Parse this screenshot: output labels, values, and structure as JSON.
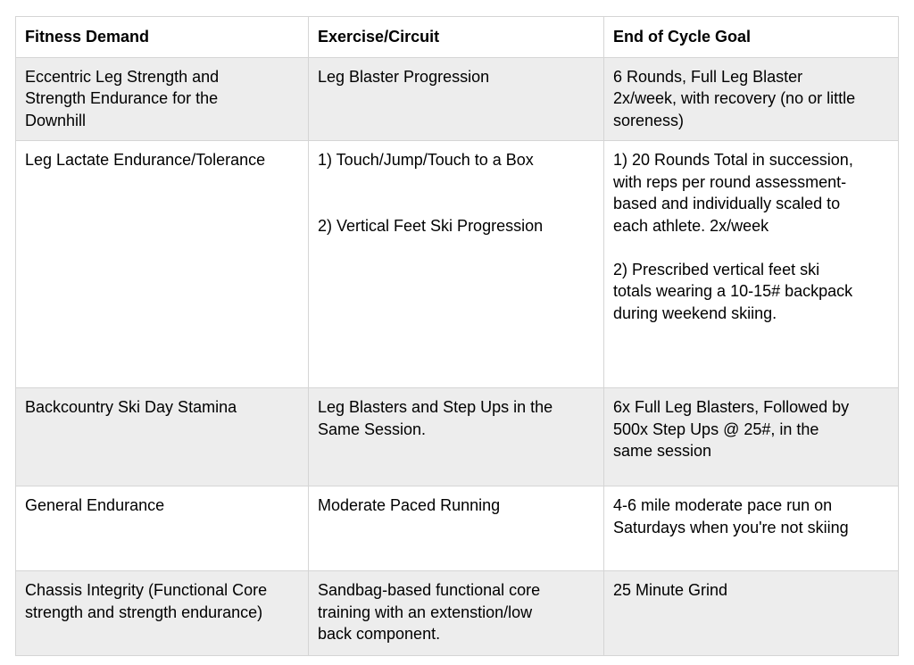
{
  "table": {
    "columns": [
      "Fitness Demand",
      "Exercise/Circuit",
      "End of Cycle Goal"
    ],
    "rows": [
      [
        "Eccentric Leg Strength and Strength Endurance for the Downhill",
        "Leg Blaster Progression",
        "6 Rounds, Full Leg Blaster 2x/week, with recovery (no or little soreness)"
      ],
      [
        "Leg Lactate Endurance/Tolerance",
        "1) Touch/Jump/Touch to a Box\n\n\n2) Vertical Feet Ski Progression",
        "1) 20 Rounds Total in succession, with reps per round assessment-based and individually scaled to each athlete. 2x/week\n\n2) Prescribed vertical feet ski totals wearing a 10-15# backpack during weekend skiing."
      ],
      [
        "Backcountry Ski Day Stamina",
        "Leg Blasters and Step Ups in the Same Session.",
        "6x Full Leg Blasters, Followed by 500x Step Ups @ 25#, in the same session"
      ],
      [
        "General Endurance",
        "Moderate Paced Running",
        "4-6 mile moderate pace run on Saturdays when you're not skiing"
      ],
      [
        "Chassis Integrity (Functional Core strength and strength endurance)",
        "Sandbag-based functional core training with an extenstion/low back component.",
        "25 Minute Grind"
      ]
    ]
  },
  "colors": {
    "row_alternate_background": "#ededed",
    "border": "#d5d5d5",
    "text": "#000000",
    "page_background": "#ffffff"
  }
}
